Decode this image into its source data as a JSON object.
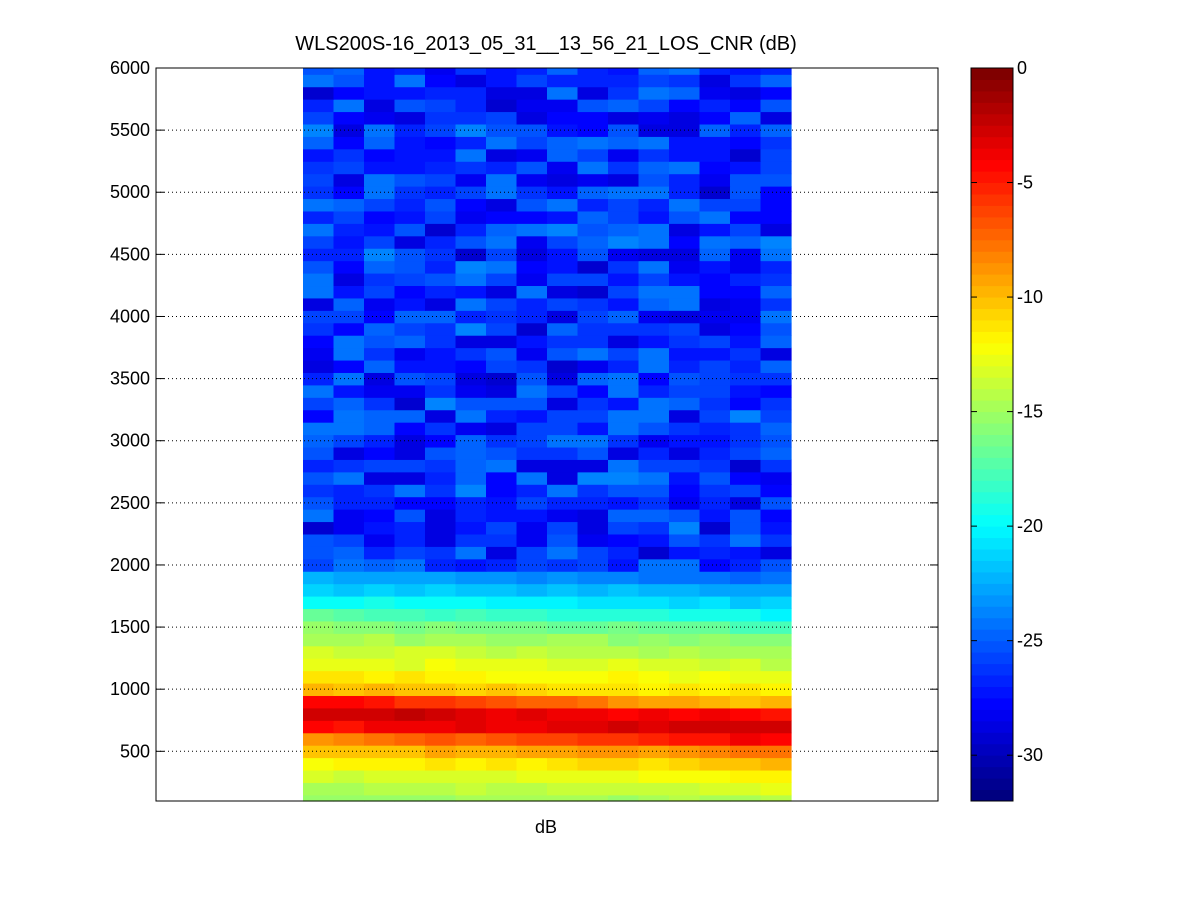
{
  "chart_data": {
    "type": "heatmap",
    "title": "WLS200S-16_2013_05_31__13_56_21_LOS_CNR (dB)",
    "xlabel": "dB",
    "ylabel": "",
    "ylim": [
      100,
      6000
    ],
    "y_ticks": [
      500,
      1000,
      1500,
      2000,
      2500,
      3000,
      3500,
      4000,
      4500,
      5000,
      5500,
      6000
    ],
    "y_grid": true,
    "columns": 16,
    "range_gates_m": {
      "start": 100,
      "stop": 6000,
      "step": 100
    },
    "cnr_profile_db": [
      {
        "range": 100,
        "cnr": -15.5
      },
      {
        "range": 200,
        "cnr": -14.5
      },
      {
        "range": 300,
        "cnr": -13.5
      },
      {
        "range": 400,
        "cnr": -12.0
      },
      {
        "range": 500,
        "cnr": -10.5
      },
      {
        "range": 600,
        "cnr": -8.5
      },
      {
        "range": 700,
        "cnr": -4.5
      },
      {
        "range": 800,
        "cnr": -2.5
      },
      {
        "range": 900,
        "cnr": -4.0
      },
      {
        "range": 1000,
        "cnr": -9.5
      },
      {
        "range": 1100,
        "cnr": -11.5
      },
      {
        "range": 1200,
        "cnr": -12.5
      },
      {
        "range": 1300,
        "cnr": -13.5
      },
      {
        "range": 1400,
        "cnr": -14.5
      },
      {
        "range": 1500,
        "cnr": -15.5
      },
      {
        "range": 1600,
        "cnr": -17.0
      },
      {
        "range": 1700,
        "cnr": -19.5
      },
      {
        "range": 1800,
        "cnr": -21.0
      },
      {
        "range": 1900,
        "cnr": -22.5
      },
      {
        "range": 2000,
        "cnr": -24.5
      },
      {
        "range": 6000,
        "cnr": -26.5
      }
    ],
    "peak_range_drift_m": [
      850,
      730
    ],
    "noise_floor_db": {
      "mean": -26.5,
      "spread": 2.6
    },
    "colorbar": {
      "colormap": "jet",
      "min": -32,
      "max": 0,
      "ticks": [
        -30,
        -25,
        -20,
        -15,
        -10,
        -5,
        0
      ]
    }
  }
}
